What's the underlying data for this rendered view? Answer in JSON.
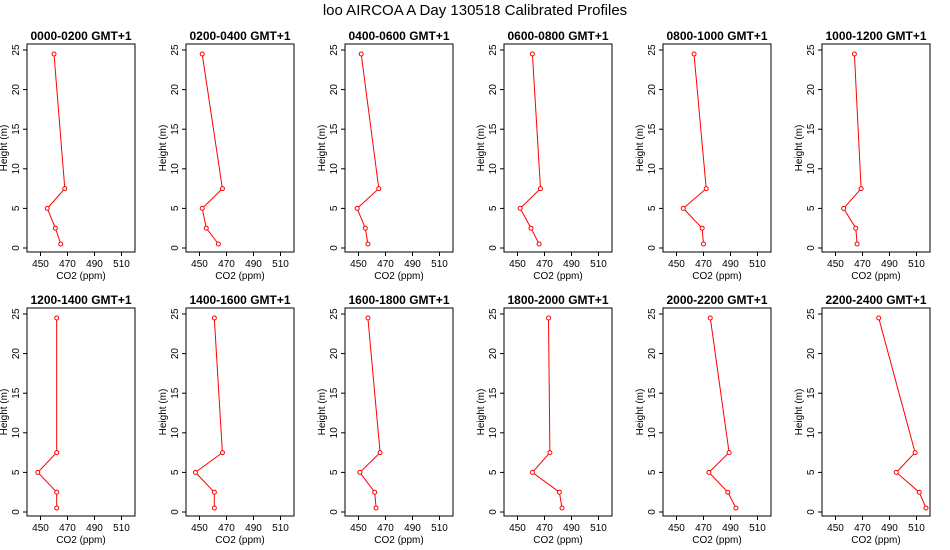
{
  "page": {
    "title": "loo AIRCOA A  Day 130518  Calibrated Profiles"
  },
  "colors": {
    "line": "#ff0000",
    "axis": "#000000",
    "background": "#ffffff"
  },
  "chart_data": [
    {
      "type": "line",
      "title": "0000-0200 GMT+1",
      "xlabel": "CO2 (ppm)",
      "ylabel": "Height (m)",
      "xlim": [
        440,
        520
      ],
      "ylim": [
        0,
        25
      ],
      "xticks": [
        450,
        470,
        490,
        510
      ],
      "yticks": [
        0,
        5,
        10,
        15,
        20,
        25
      ],
      "points": [
        {
          "x": 465,
          "y": 0.5
        },
        {
          "x": 461,
          "y": 2.5
        },
        {
          "x": 455,
          "y": 5
        },
        {
          "x": 468,
          "y": 7.5
        },
        {
          "x": 460,
          "y": 24.5
        }
      ]
    },
    {
      "type": "line",
      "title": "0200-0400 GMT+1",
      "xlabel": "CO2 (ppm)",
      "ylabel": "Height (m)",
      "xlim": [
        440,
        520
      ],
      "ylim": [
        0,
        25
      ],
      "xticks": [
        450,
        470,
        490,
        510
      ],
      "yticks": [
        0,
        5,
        10,
        15,
        20,
        25
      ],
      "points": [
        {
          "x": 464,
          "y": 0.5
        },
        {
          "x": 455,
          "y": 2.5
        },
        {
          "x": 452,
          "y": 5
        },
        {
          "x": 467,
          "y": 7.5
        },
        {
          "x": 452,
          "y": 24.5
        }
      ]
    },
    {
      "type": "line",
      "title": "0400-0600 GMT+1",
      "xlabel": "CO2 (ppm)",
      "ylabel": "Height (m)",
      "xlim": [
        440,
        520
      ],
      "ylim": [
        0,
        25
      ],
      "xticks": [
        450,
        470,
        490,
        510
      ],
      "yticks": [
        0,
        5,
        10,
        15,
        20,
        25
      ],
      "points": [
        {
          "x": 457,
          "y": 0.5
        },
        {
          "x": 455,
          "y": 2.5
        },
        {
          "x": 449,
          "y": 5
        },
        {
          "x": 465,
          "y": 7.5
        },
        {
          "x": 452,
          "y": 24.5
        }
      ]
    },
    {
      "type": "line",
      "title": "0600-0800 GMT+1",
      "xlabel": "CO2 (ppm)",
      "ylabel": "Height (m)",
      "xlim": [
        440,
        520
      ],
      "ylim": [
        0,
        25
      ],
      "xticks": [
        450,
        470,
        490,
        510
      ],
      "yticks": [
        0,
        5,
        10,
        15,
        20,
        25
      ],
      "points": [
        {
          "x": 466,
          "y": 0.5
        },
        {
          "x": 460,
          "y": 2.5
        },
        {
          "x": 452,
          "y": 5
        },
        {
          "x": 467,
          "y": 7.5
        },
        {
          "x": 461,
          "y": 24.5
        }
      ]
    },
    {
      "type": "line",
      "title": "0800-1000 GMT+1",
      "xlabel": "CO2 (ppm)",
      "ylabel": "Height (m)",
      "xlim": [
        440,
        520
      ],
      "ylim": [
        0,
        25
      ],
      "xticks": [
        450,
        470,
        490,
        510
      ],
      "yticks": [
        0,
        5,
        10,
        15,
        20,
        25
      ],
      "points": [
        {
          "x": 470,
          "y": 0.5
        },
        {
          "x": 469,
          "y": 2.5
        },
        {
          "x": 455,
          "y": 5
        },
        {
          "x": 472,
          "y": 7.5
        },
        {
          "x": 463,
          "y": 24.5
        }
      ]
    },
    {
      "type": "line",
      "title": "1000-1200 GMT+1",
      "xlabel": "CO2 (ppm)",
      "ylabel": "Height (m)",
      "xlim": [
        440,
        520
      ],
      "ylim": [
        0,
        25
      ],
      "xticks": [
        450,
        470,
        490,
        510
      ],
      "yticks": [
        0,
        5,
        10,
        15,
        20,
        25
      ],
      "points": [
        {
          "x": 466,
          "y": 0.5
        },
        {
          "x": 465,
          "y": 2.5
        },
        {
          "x": 456,
          "y": 5
        },
        {
          "x": 469,
          "y": 7.5
        },
        {
          "x": 464,
          "y": 24.5
        }
      ]
    },
    {
      "type": "line",
      "title": "1200-1400 GMT+1",
      "xlabel": "CO2 (ppm)",
      "ylabel": "Height (m)",
      "xlim": [
        440,
        520
      ],
      "ylim": [
        0,
        25
      ],
      "xticks": [
        450,
        470,
        490,
        510
      ],
      "yticks": [
        0,
        5,
        10,
        15,
        20,
        25
      ],
      "points": [
        {
          "x": 462,
          "y": 0.5
        },
        {
          "x": 462,
          "y": 2.5
        },
        {
          "x": 448,
          "y": 5
        },
        {
          "x": 462,
          "y": 7.5
        },
        {
          "x": 462,
          "y": 24.5
        }
      ]
    },
    {
      "type": "line",
      "title": "1400-1600 GMT+1",
      "xlabel": "CO2 (ppm)",
      "ylabel": "Height (m)",
      "xlim": [
        440,
        520
      ],
      "ylim": [
        0,
        25
      ],
      "xticks": [
        450,
        470,
        490,
        510
      ],
      "yticks": [
        0,
        5,
        10,
        15,
        20,
        25
      ],
      "points": [
        {
          "x": 461,
          "y": 0.5
        },
        {
          "x": 461,
          "y": 2.5
        },
        {
          "x": 447,
          "y": 5
        },
        {
          "x": 467,
          "y": 7.5
        },
        {
          "x": 461,
          "y": 24.5
        }
      ]
    },
    {
      "type": "line",
      "title": "1600-1800 GMT+1",
      "xlabel": "CO2 (ppm)",
      "ylabel": "Height (m)",
      "xlim": [
        440,
        520
      ],
      "ylim": [
        0,
        25
      ],
      "xticks": [
        450,
        470,
        490,
        510
      ],
      "yticks": [
        0,
        5,
        10,
        15,
        20,
        25
      ],
      "points": [
        {
          "x": 463,
          "y": 0.5
        },
        {
          "x": 462,
          "y": 2.5
        },
        {
          "x": 451,
          "y": 5
        },
        {
          "x": 466,
          "y": 7.5
        },
        {
          "x": 457,
          "y": 24.5
        }
      ]
    },
    {
      "type": "line",
      "title": "1800-2000 GMT+1",
      "xlabel": "CO2 (ppm)",
      "ylabel": "Height (m)",
      "xlim": [
        440,
        520
      ],
      "ylim": [
        0,
        25
      ],
      "xticks": [
        450,
        470,
        490,
        510
      ],
      "yticks": [
        0,
        5,
        10,
        15,
        20,
        25
      ],
      "points": [
        {
          "x": 483,
          "y": 0.5
        },
        {
          "x": 481,
          "y": 2.5
        },
        {
          "x": 461,
          "y": 5
        },
        {
          "x": 474,
          "y": 7.5
        },
        {
          "x": 473,
          "y": 24.5
        }
      ]
    },
    {
      "type": "line",
      "title": "2000-2200 GMT+1",
      "xlabel": "CO2 (ppm)",
      "ylabel": "Height (m)",
      "xlim": [
        440,
        520
      ],
      "ylim": [
        0,
        25
      ],
      "xticks": [
        450,
        470,
        490,
        510
      ],
      "yticks": [
        0,
        5,
        10,
        15,
        20,
        25
      ],
      "points": [
        {
          "x": 494,
          "y": 0.5
        },
        {
          "x": 488,
          "y": 2.5
        },
        {
          "x": 474,
          "y": 5
        },
        {
          "x": 489,
          "y": 7.5
        },
        {
          "x": 475,
          "y": 24.5
        }
      ]
    },
    {
      "type": "line",
      "title": "2200-2400 GMT+1",
      "xlabel": "CO2 (ppm)",
      "ylabel": "Height (m)",
      "xlim": [
        440,
        520
      ],
      "ylim": [
        0,
        25
      ],
      "xticks": [
        450,
        470,
        490,
        510
      ],
      "yticks": [
        0,
        5,
        10,
        15,
        20,
        25
      ],
      "points": [
        {
          "x": 517,
          "y": 0.5
        },
        {
          "x": 512,
          "y": 2.5
        },
        {
          "x": 495,
          "y": 5
        },
        {
          "x": 509,
          "y": 7.5
        },
        {
          "x": 482,
          "y": 24.5
        }
      ]
    }
  ]
}
